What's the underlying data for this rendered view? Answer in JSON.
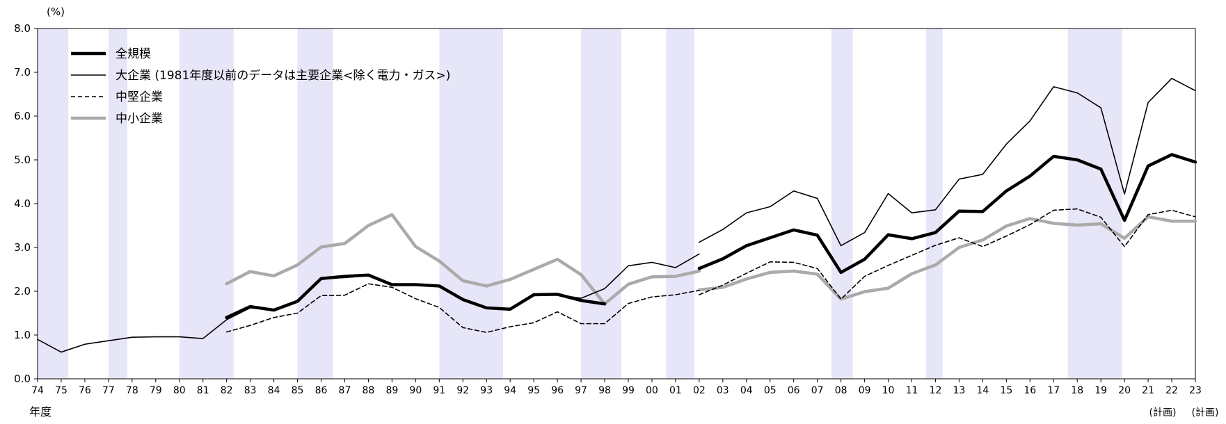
{
  "chart_data": {
    "type": "line",
    "unit_label": "(%)",
    "xlabel": "年度",
    "plan_notes": [
      "(計画)",
      "(計画)"
    ],
    "categories": [
      "74",
      "75",
      "76",
      "77",
      "78",
      "79",
      "80",
      "81",
      "82",
      "83",
      "84",
      "85",
      "86",
      "87",
      "88",
      "89",
      "90",
      "91",
      "92",
      "93",
      "94",
      "95",
      "96",
      "97",
      "98",
      "99",
      "00",
      "01",
      "02",
      "03",
      "04",
      "05",
      "06",
      "07",
      "08",
      "09",
      "10",
      "11",
      "12",
      "13",
      "14",
      "15",
      "16",
      "17",
      "18",
      "19",
      "20",
      "21",
      "22",
      "23"
    ],
    "ylim": [
      0,
      8
    ],
    "yticks": [
      "0.0",
      "1.0",
      "2.0",
      "3.0",
      "4.0",
      "5.0",
      "6.0",
      "7.0",
      "8.0"
    ],
    "shaded_periods": [
      [
        74.0,
        75.3
      ],
      [
        77.0,
        77.8
      ],
      [
        80.0,
        82.3
      ],
      [
        85.0,
        86.5
      ],
      [
        91.0,
        93.7
      ],
      [
        97.0,
        98.7
      ],
      [
        100.6,
        101.8
      ],
      [
        107.6,
        108.5
      ],
      [
        111.6,
        112.3
      ],
      [
        117.6,
        119.9
      ]
    ],
    "legend": {
      "placement": "top-left"
    },
    "series": [
      {
        "name": "全規模",
        "style": "thick-solid",
        "color": "#000000",
        "segments": [
          {
            "x": [
              82,
              83,
              84,
              85,
              86,
              87,
              88,
              89,
              90,
              91,
              92,
              93,
              94,
              95,
              96,
              97,
              98
            ],
            "y": [
              1.4,
              1.65,
              1.57,
              1.77,
              2.29,
              2.34,
              2.37,
              2.15,
              2.15,
              2.12,
              1.81,
              1.62,
              1.59,
              1.92,
              1.93,
              1.79,
              1.71
            ]
          },
          {
            "x": [
              102,
              103,
              104,
              105,
              106,
              107,
              108,
              109,
              110,
              111,
              112,
              113,
              114,
              115,
              116,
              117,
              118,
              119,
              120,
              121,
              122,
              123
            ],
            "y": [
              2.52,
              2.74,
              3.04,
              3.22,
              3.4,
              3.28,
              2.43,
              2.73,
              3.29,
              3.2,
              3.34,
              3.83,
              3.82,
              4.29,
              4.63,
              5.08,
              5.0,
              4.79,
              3.62,
              4.86,
              5.12,
              4.95
            ]
          }
        ]
      },
      {
        "name": "大企業 (1981年度以前のデータは主要企業<除く電力・ガス>)",
        "style": "thin-solid",
        "color": "#000000",
        "segments": [
          {
            "x": [
              74,
              75,
              76,
              77,
              78,
              79,
              80,
              81,
              82,
              83,
              84,
              85,
              86,
              87,
              88,
              89,
              90,
              91,
              92,
              93,
              94,
              95,
              96,
              97,
              98,
              99,
              100,
              101,
              102
            ],
            "y": [
              0.9,
              0.61,
              0.79,
              0.87,
              0.95,
              0.96,
              0.96,
              0.92,
              1.35,
              1.62,
              1.56,
              1.75,
              2.29,
              2.31,
              2.36,
              2.13,
              2.14,
              2.12,
              1.83,
              1.64,
              1.6,
              1.9,
              1.92,
              1.84,
              2.06,
              2.58,
              2.66,
              2.54,
              2.85
            ]
          },
          {
            "x": [
              102,
              103,
              104,
              105,
              106,
              107,
              108,
              109,
              110,
              111,
              112,
              113,
              114,
              115,
              116,
              117,
              118,
              119,
              120,
              121,
              122,
              123
            ],
            "y": [
              3.12,
              3.41,
              3.79,
              3.93,
              4.29,
              4.12,
              3.04,
              3.34,
              4.23,
              3.79,
              3.86,
              4.56,
              4.67,
              5.36,
              5.89,
              6.67,
              6.53,
              6.19,
              4.22,
              6.31,
              6.86,
              6.58
            ]
          }
        ]
      },
      {
        "name": "中堅企業",
        "style": "dashed",
        "color": "#000000",
        "segments": [
          {
            "x": [
              82,
              83,
              84,
              85,
              86,
              87,
              88,
              89,
              90,
              91,
              92,
              93,
              94,
              95,
              96,
              97,
              98,
              99,
              100,
              101,
              102
            ],
            "y": [
              1.07,
              1.22,
              1.4,
              1.5,
              1.9,
              1.91,
              2.17,
              2.09,
              1.83,
              1.63,
              1.17,
              1.06,
              1.19,
              1.28,
              1.53,
              1.26,
              1.26,
              1.72,
              1.87,
              1.92,
              2.02
            ]
          },
          {
            "x": [
              102,
              103,
              104,
              105,
              106,
              107,
              108,
              109,
              110,
              111,
              112,
              113,
              114,
              115,
              116,
              117,
              118,
              119,
              120,
              121,
              122,
              123
            ],
            "y": [
              1.92,
              2.14,
              2.41,
              2.67,
              2.66,
              2.52,
              1.82,
              2.34,
              2.59,
              2.82,
              3.05,
              3.22,
              3.02,
              3.26,
              3.52,
              3.85,
              3.88,
              3.69,
              3.02,
              3.75,
              3.85,
              3.7
            ]
          }
        ]
      },
      {
        "name": "中小企業",
        "style": "thick-gray",
        "color": "#aaaaaa",
        "segments": [
          {
            "x": [
              82,
              83,
              84,
              85,
              86,
              87,
              88,
              89,
              90,
              91,
              92,
              93,
              94,
              95,
              96,
              97,
              98,
              99,
              100,
              101,
              102
            ],
            "y": [
              2.17,
              2.45,
              2.35,
              2.6,
              3.01,
              3.09,
              3.5,
              3.75,
              3.02,
              2.69,
              2.24,
              2.12,
              2.27,
              2.5,
              2.73,
              2.38,
              1.71,
              2.16,
              2.33,
              2.34,
              2.46
            ]
          },
          {
            "x": [
              102,
              103,
              104,
              105,
              106,
              107,
              108,
              109,
              110,
              111,
              112,
              113,
              114,
              115,
              116,
              117,
              118,
              119,
              120,
              121,
              122,
              123
            ],
            "y": [
              2.03,
              2.09,
              2.28,
              2.43,
              2.46,
              2.39,
              1.82,
              1.99,
              2.07,
              2.4,
              2.6,
              3.0,
              3.17,
              3.49,
              3.66,
              3.55,
              3.51,
              3.54,
              3.21,
              3.7,
              3.6,
              3.6
            ]
          }
        ]
      }
    ]
  }
}
